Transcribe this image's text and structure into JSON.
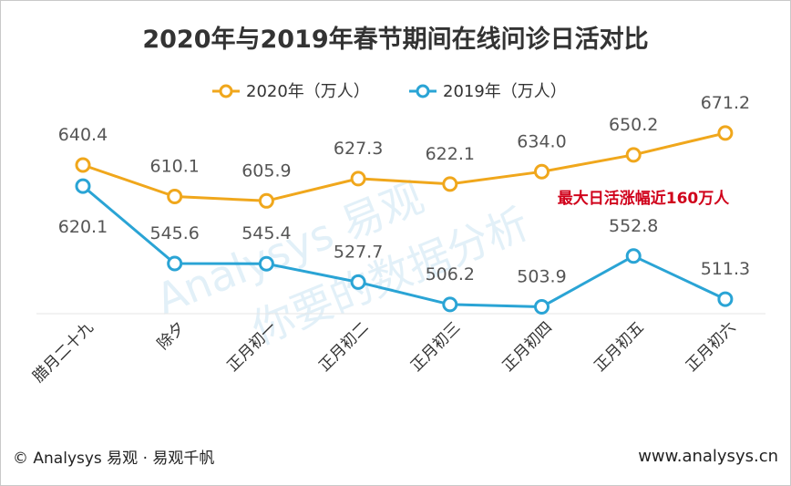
{
  "chart_data": {
    "type": "line",
    "title": "2020年与2019年春节期间在线问诊日活对比",
    "categories": [
      "腊月二十九",
      "除夕",
      "正月初一",
      "正月初二",
      "正月初三",
      "正月初四",
      "正月初五",
      "正月初六"
    ],
    "series": [
      {
        "name": "2020年（万人）",
        "color": "#f0a71c",
        "values": [
          640.4,
          610.1,
          605.9,
          627.3,
          622.1,
          634.0,
          650.2,
          671.2
        ]
      },
      {
        "name": "2019年（万人）",
        "color": "#2aa4d5",
        "values": [
          620.1,
          545.6,
          545.4,
          527.7,
          506.2,
          503.9,
          552.8,
          511.3
        ]
      }
    ],
    "value_labels": [
      [
        "640.4",
        "610.1",
        "605.9",
        "627.3",
        "622.1",
        "634.0",
        "650.2",
        "671.2"
      ],
      [
        "620.1",
        "545.6",
        "545.4",
        "527.7",
        "506.2",
        "503.9",
        "552.8",
        "511.3"
      ]
    ],
    "annotation": "最大日活涨幅近160万人",
    "legend_position": "top-center",
    "grid": false,
    "xlabel": "",
    "ylabel": ""
  },
  "footer": {
    "left": "© Analysys 易观 · 易观千帆",
    "right": "www.analysys.cn"
  },
  "watermark": {
    "line1": "Analysys 易观",
    "line2": "你要的数据分析"
  },
  "colors": {
    "series_2020": "#f0a71c",
    "series_2019": "#2aa4d5",
    "annotation": "#d0021b"
  }
}
